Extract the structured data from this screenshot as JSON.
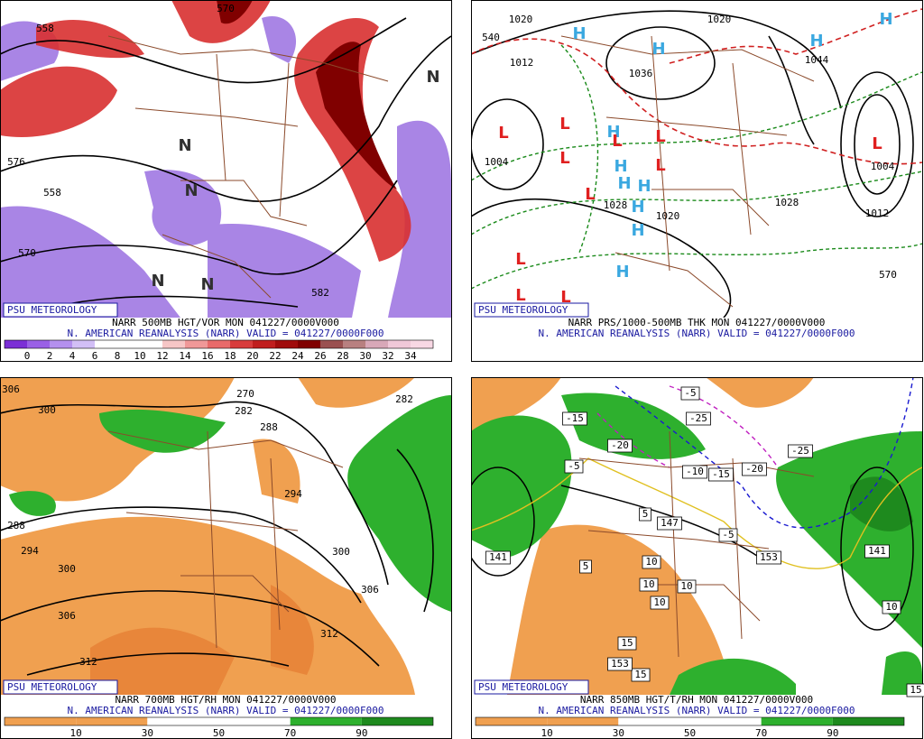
{
  "panels": [
    {
      "badge": "PSU METEOROLOGY",
      "caption1": "NARR 500MB HGT/VOR MON 041227/0000V000",
      "caption2": "N. AMERICAN REANALYSIS (NARR) VALID = 041227/0000F000",
      "legend": {
        "ticks": [
          0,
          2,
          4,
          6,
          8,
          10,
          12,
          14,
          16,
          18,
          20,
          22,
          24,
          26,
          28,
          30,
          32,
          34
        ],
        "colors": [
          "#7b2fd6",
          "#9a60e6",
          "#b490ee",
          "#d2bff6",
          "#ffffff",
          "#ffffff",
          "#ffffff",
          "#f6c6c6",
          "#f09898",
          "#e86a6a",
          "#d83c3c",
          "#c01e1e",
          "#a00c0c",
          "#800000",
          "#9a5050",
          "#b88080",
          "#d8a8b8",
          "#f0c8d8",
          "#f8d8e4"
        ]
      },
      "labels": [
        "558",
        "576",
        "558",
        "570",
        "582",
        "570"
      ],
      "centers": [
        "N",
        "N",
        "N",
        "N",
        "N"
      ]
    },
    {
      "badge": "PSU METEOROLOGY",
      "caption1": "NARR PRS/1000-500MB THK MON 041227/0000V000",
      "caption2": "N. AMERICAN REANALYSIS (NARR) VALID = 041227/0000F000",
      "labels": [
        "1020",
        "540",
        "1012",
        "1036",
        "1020",
        "1044",
        "1004",
        "1004",
        "1012",
        "1020",
        "1028",
        "570",
        "1028"
      ],
      "centers": [
        "H",
        "H",
        "H",
        "H",
        "H",
        "H",
        "H",
        "H",
        "H",
        "H",
        "H",
        "L",
        "L",
        "L",
        "L",
        "L",
        "L",
        "L",
        "L",
        "L",
        "L",
        "L"
      ]
    },
    {
      "badge": "PSU METEOROLOGY",
      "caption1": "NARR 700MB HGT/RH MON 041227/0000V000",
      "caption2": "N. AMERICAN REANALYSIS (NARR) VALID = 041227/0000F000",
      "legend": {
        "ticks": [
          10,
          30,
          50,
          70,
          90
        ],
        "colors": [
          "#f0a050",
          "#f0a050",
          "#ffffff",
          "#ffffff",
          "#2eb02e",
          "#1e8a1e"
        ]
      },
      "labels": [
        "306",
        "300",
        "288",
        "294",
        "300",
        "306",
        "312",
        "312",
        "306",
        "300",
        "294",
        "270",
        "282",
        "288",
        "282"
      ]
    },
    {
      "badge": "PSU METEOROLOGY",
      "caption1": "NARR 850MB HGT/T/RH MON 041227/0000V000",
      "caption2": "N. AMERICAN REANALYSIS (NARR) VALID = 041227/0000F000",
      "legend": {
        "ticks": [
          10,
          30,
          50,
          70,
          90
        ],
        "colors": [
          "#f0a050",
          "#f0a050",
          "#ffffff",
          "#ffffff",
          "#2eb02e",
          "#1e8a1e"
        ]
      },
      "labels": [
        "-5",
        "-15",
        "-25",
        "-20",
        "-10",
        "-15",
        "-25",
        "-20",
        "-5",
        "-5",
        "5",
        "5",
        "10",
        "10",
        "10",
        "10",
        "15",
        "15",
        "15",
        "10",
        "141",
        "147",
        "153",
        "141",
        "153"
      ]
    }
  ]
}
